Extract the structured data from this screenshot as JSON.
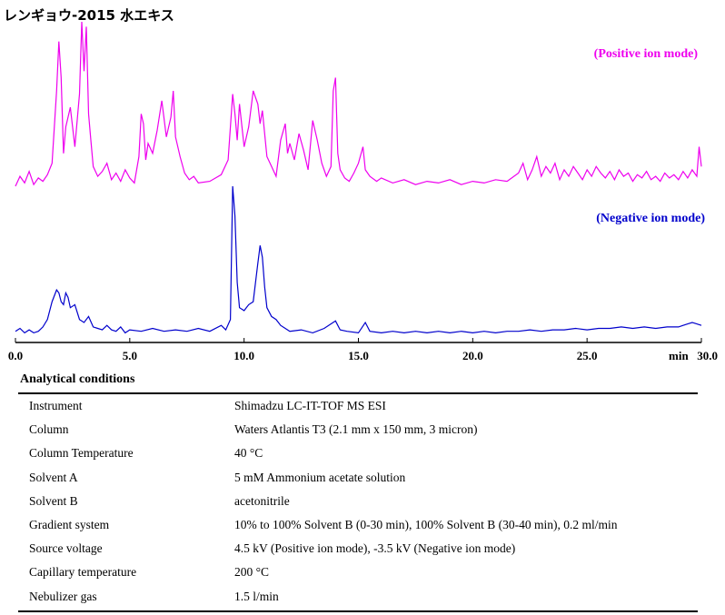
{
  "title": "レンギョウ-2015 水エキス",
  "chart_data": {
    "type": "line",
    "xlabel": "min",
    "xlim": [
      0,
      30
    ],
    "x_ticks": [
      "0.0",
      "5.0",
      "10.0",
      "15.0",
      "20.0",
      "25.0",
      "30.0"
    ],
    "y_axis_shown": false,
    "series": [
      {
        "name": "(Positive ion mode)",
        "color": "#ee00ee",
        "x": [
          0.0,
          0.2,
          0.4,
          0.6,
          0.8,
          1.0,
          1.2,
          1.4,
          1.6,
          1.8,
          1.9,
          2.0,
          2.1,
          2.2,
          2.4,
          2.6,
          2.8,
          2.9,
          3.0,
          3.1,
          3.2,
          3.3,
          3.4,
          3.6,
          3.8,
          4.0,
          4.2,
          4.4,
          4.6,
          4.8,
          5.0,
          5.2,
          5.4,
          5.5,
          5.6,
          5.7,
          5.8,
          6.0,
          6.2,
          6.4,
          6.6,
          6.8,
          6.9,
          7.0,
          7.2,
          7.4,
          7.6,
          7.8,
          8.0,
          8.5,
          9.0,
          9.3,
          9.5,
          9.6,
          9.7,
          9.8,
          10.0,
          10.2,
          10.4,
          10.6,
          10.7,
          10.8,
          11.0,
          11.2,
          11.4,
          11.6,
          11.8,
          11.9,
          12.0,
          12.2,
          12.4,
          12.6,
          12.8,
          13.0,
          13.2,
          13.4,
          13.6,
          13.8,
          13.9,
          14.0,
          14.1,
          14.2,
          14.4,
          14.6,
          14.8,
          15.0,
          15.2,
          15.3,
          15.5,
          15.8,
          16.0,
          16.5,
          17.0,
          17.5,
          18.0,
          18.5,
          19.0,
          19.5,
          20.0,
          20.5,
          21.0,
          21.5,
          22.0,
          22.2,
          22.4,
          22.6,
          22.8,
          23.0,
          23.2,
          23.4,
          23.6,
          23.8,
          24.0,
          24.2,
          24.4,
          24.6,
          24.8,
          25.0,
          25.2,
          25.4,
          25.6,
          25.8,
          26.0,
          26.2,
          26.4,
          26.6,
          26.8,
          27.0,
          27.2,
          27.4,
          27.6,
          27.8,
          28.0,
          28.2,
          28.4,
          28.6,
          28.8,
          29.0,
          29.2,
          29.4,
          29.6,
          29.8,
          29.9,
          30.0
        ],
        "y": [
          0,
          6,
          2,
          9,
          1,
          5,
          3,
          7,
          14,
          58,
          88,
          66,
          20,
          36,
          48,
          24,
          56,
          100,
          70,
          97,
          44,
          28,
          12,
          6,
          9,
          14,
          4,
          8,
          3,
          10,
          5,
          2,
          18,
          44,
          38,
          16,
          26,
          20,
          34,
          52,
          30,
          42,
          58,
          30,
          18,
          8,
          4,
          6,
          2,
          3,
          7,
          16,
          56,
          44,
          28,
          50,
          24,
          36,
          58,
          50,
          38,
          46,
          18,
          12,
          6,
          28,
          38,
          20,
          26,
          16,
          32,
          22,
          10,
          40,
          28,
          14,
          6,
          12,
          58,
          66,
          20,
          10,
          5,
          3,
          8,
          14,
          24,
          10,
          6,
          3,
          5,
          2,
          4,
          1,
          3,
          2,
          4,
          1,
          3,
          2,
          4,
          3,
          8,
          14,
          4,
          10,
          18,
          6,
          12,
          8,
          14,
          4,
          10,
          6,
          12,
          8,
          4,
          10,
          6,
          12,
          8,
          5,
          9,
          4,
          10,
          6,
          8,
          3,
          7,
          5,
          9,
          4,
          6,
          3,
          8,
          5,
          7,
          4,
          9,
          5,
          10,
          6,
          24,
          12
        ]
      },
      {
        "name": "(Negative ion mode)",
        "color": "#0000cc",
        "x": [
          0.0,
          0.2,
          0.4,
          0.6,
          0.8,
          1.0,
          1.2,
          1.4,
          1.6,
          1.8,
          1.9,
          2.0,
          2.1,
          2.2,
          2.3,
          2.4,
          2.6,
          2.8,
          3.0,
          3.2,
          3.4,
          3.6,
          3.8,
          4.0,
          4.2,
          4.4,
          4.6,
          4.8,
          5.0,
          5.5,
          6.0,
          6.5,
          7.0,
          7.5,
          8.0,
          8.5,
          9.0,
          9.2,
          9.4,
          9.5,
          9.6,
          9.7,
          9.8,
          10.0,
          10.2,
          10.4,
          10.6,
          10.7,
          10.8,
          10.9,
          11.0,
          11.2,
          11.4,
          11.6,
          11.8,
          12.0,
          12.5,
          13.0,
          13.5,
          14.0,
          14.2,
          14.5,
          15.0,
          15.3,
          15.5,
          16.0,
          16.5,
          17.0,
          17.5,
          18.0,
          18.5,
          19.0,
          19.5,
          20.0,
          20.5,
          21.0,
          21.5,
          22.0,
          22.5,
          23.0,
          23.5,
          24.0,
          24.5,
          25.0,
          25.5,
          26.0,
          26.5,
          27.0,
          27.5,
          28.0,
          28.5,
          29.0,
          29.2,
          29.4,
          29.6,
          29.8,
          30.0
        ],
        "y": [
          2,
          4,
          1,
          3,
          1,
          2,
          5,
          10,
          22,
          30,
          28,
          22,
          20,
          28,
          25,
          18,
          20,
          10,
          8,
          12,
          5,
          4,
          3,
          6,
          3,
          2,
          5,
          1,
          3,
          2,
          4,
          2,
          3,
          2,
          4,
          2,
          6,
          3,
          10,
          100,
          80,
          35,
          18,
          16,
          20,
          22,
          48,
          60,
          52,
          32,
          18,
          12,
          10,
          6,
          4,
          2,
          3,
          1,
          4,
          9,
          3,
          2,
          1,
          8,
          2,
          1,
          2,
          1,
          2,
          1,
          2,
          1,
          2,
          1,
          2,
          1,
          2,
          2,
          3,
          2,
          3,
          3,
          4,
          3,
          4,
          4,
          5,
          4,
          5,
          4,
          5,
          5,
          6,
          7,
          8,
          7,
          6
        ]
      }
    ]
  },
  "conditions": {
    "heading": "Analytical conditions",
    "rows": [
      {
        "label": "Instrument",
        "value": "Shimadzu LC-IT-TOF MS ESI"
      },
      {
        "label": "Column",
        "value": "Waters Atlantis T3 (2.1 mm x 150 mm, 3 micron)"
      },
      {
        "label": "Column Temperature",
        "value": "40 °C"
      },
      {
        "label": "Solvent A",
        "value": "5 mM Ammonium acetate solution"
      },
      {
        "label": "Solvent B",
        "value": "acetonitrile"
      },
      {
        "label": "Gradient system",
        "value": "10% to 100% Solvent B (0-30 min), 100% Solvent B (30-40 min), 0.2 ml/min"
      },
      {
        "label": "Source voltage",
        "value": "4.5 kV (Positive ion mode), -3.5 kV (Negative ion mode)"
      },
      {
        "label": "Capillary temperature",
        "value": "200 °C"
      },
      {
        "label": "Nebulizer gas",
        "value": "1.5 l/min"
      }
    ]
  }
}
